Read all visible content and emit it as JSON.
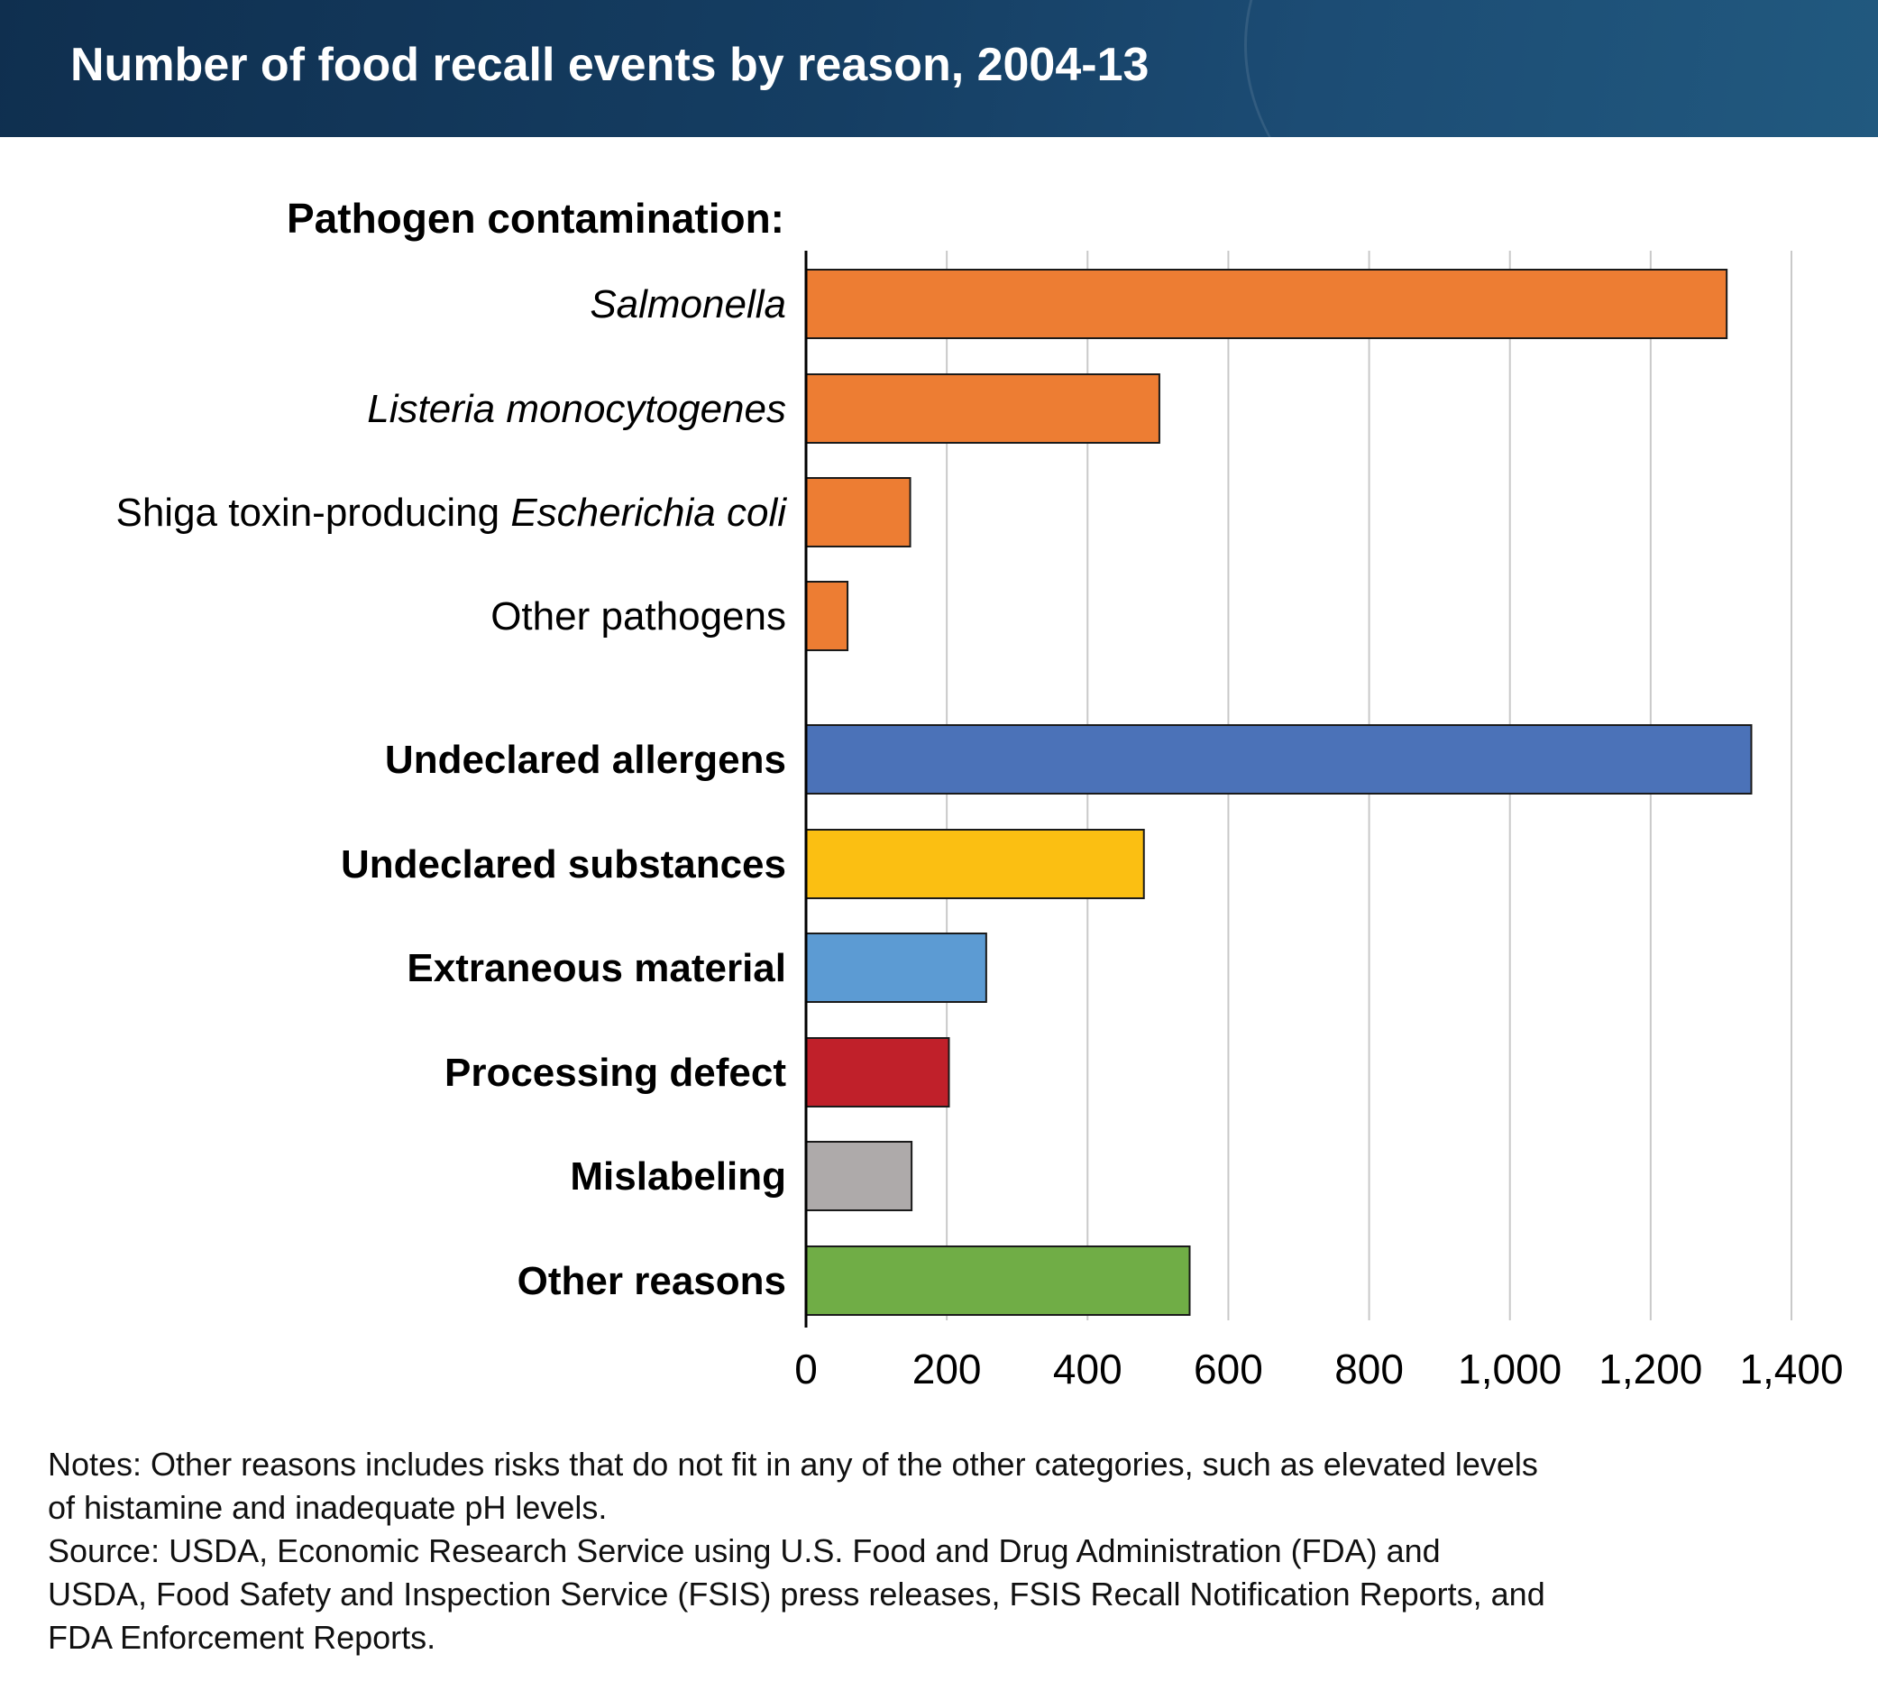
{
  "colors": {
    "header_bg": "#153e63",
    "pathogen": "#ed7d33",
    "allergens": "#4b72b8",
    "substances": "#fbbf12",
    "extraneous": "#5c9bd3",
    "processing": "#c0202a",
    "mislabeling": "#aeaaaa",
    "other": "#70ad46",
    "gridline": "#c9c9c9"
  },
  "chart_data": {
    "type": "bar",
    "orientation": "horizontal",
    "title": "Number of food recall events by reason, 2004-13",
    "group_heading": "Pathogen contamination:",
    "xlim": [
      0,
      1400
    ],
    "x_ticks": [
      "0",
      "200",
      "400",
      "600",
      "800",
      "1,000",
      "1,200",
      "1,400"
    ],
    "x_tick_values": [
      0,
      200,
      400,
      600,
      800,
      1000,
      1200,
      1400
    ],
    "grid": true,
    "legend": "none",
    "categories": [
      {
        "parts": [
          {
            "t": "Salmonella",
            "i": true
          }
        ],
        "bold": false,
        "value": 1308,
        "color": "#ed7d33",
        "group": "pathogen"
      },
      {
        "parts": [
          {
            "t": "Listeria monocytogenes",
            "i": true
          }
        ],
        "bold": false,
        "value": 502,
        "color": "#ed7d33",
        "group": "pathogen"
      },
      {
        "parts": [
          {
            "t": "Shiga toxin-producing ",
            "i": false
          },
          {
            "t": "Escherichia coli",
            "i": true
          }
        ],
        "bold": false,
        "value": 148,
        "color": "#ed7d33",
        "group": "pathogen"
      },
      {
        "parts": [
          {
            "t": "Other pathogens",
            "i": false
          }
        ],
        "bold": false,
        "value": 59,
        "color": "#ed7d33",
        "group": "pathogen"
      },
      {
        "parts": [
          {
            "t": "Undeclared allergens",
            "i": false
          }
        ],
        "bold": true,
        "value": 1343,
        "color": "#4b72b8",
        "group": "other"
      },
      {
        "parts": [
          {
            "t": "Undeclared substances",
            "i": false
          }
        ],
        "bold": true,
        "value": 480,
        "color": "#fbbf12",
        "group": "other"
      },
      {
        "parts": [
          {
            "t": "Extraneous material",
            "i": false
          }
        ],
        "bold": true,
        "value": 256,
        "color": "#5c9bd3",
        "group": "other"
      },
      {
        "parts": [
          {
            "t": "Processing defect",
            "i": false
          }
        ],
        "bold": true,
        "value": 203,
        "color": "#c0202a",
        "group": "other"
      },
      {
        "parts": [
          {
            "t": "Mislabeling",
            "i": false
          }
        ],
        "bold": true,
        "value": 150,
        "color": "#aeaaaa",
        "group": "other"
      },
      {
        "parts": [
          {
            "t": "Other reasons",
            "i": false
          }
        ],
        "bold": true,
        "value": 545,
        "color": "#70ad46",
        "group": "other"
      }
    ]
  },
  "notes": {
    "notes_text": "Notes: Other reasons includes risks that do not fit in any of the other categories, such as elevated levels\nof histamine and inadequate pH levels.",
    "source_text": "Source: USDA, Economic Research Service using U.S. Food and Drug Administration (FDA) and\nUSDA, Food Safety and Inspection Service (FSIS) press releases, FSIS Recall Notification Reports, and\nFDA Enforcement Reports."
  }
}
